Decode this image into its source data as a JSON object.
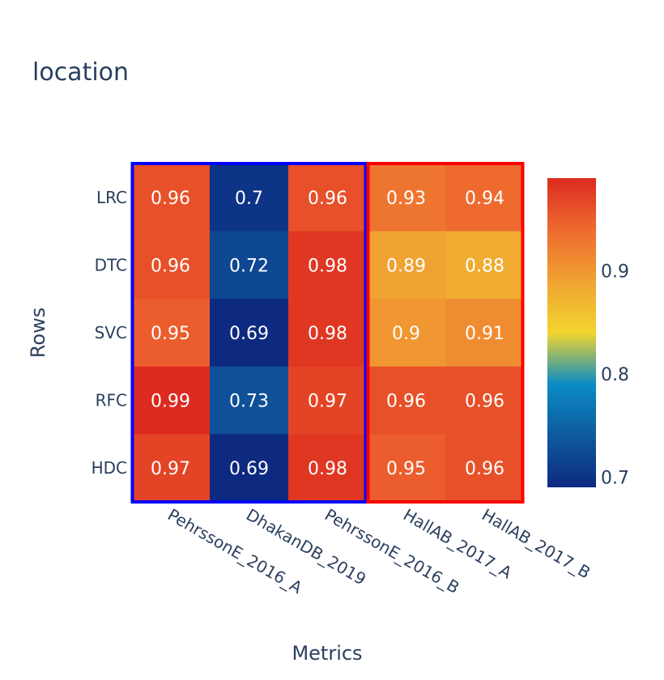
{
  "chart_data": {
    "type": "heatmap",
    "title": "location",
    "xlabel": "Metrics",
    "ylabel": "Rows",
    "x": [
      "PehrssonE_2016_A",
      "DhakanDB_2019",
      "PehrssonE_2016_B",
      "HallAB_2017_A",
      "HallAB_2017_B"
    ],
    "y": [
      "LRC",
      "DTC",
      "SVC",
      "RFC",
      "HDC"
    ],
    "values": [
      [
        0.96,
        0.7,
        0.96,
        0.93,
        0.94
      ],
      [
        0.96,
        0.72,
        0.98,
        0.89,
        0.88
      ],
      [
        0.95,
        0.69,
        0.98,
        0.9,
        0.91
      ],
      [
        0.99,
        0.73,
        0.97,
        0.96,
        0.96
      ],
      [
        0.97,
        0.69,
        0.98,
        0.95,
        0.96
      ]
    ],
    "labels": [
      [
        "0.96",
        "0.7",
        "0.96",
        "0.93",
        "0.94"
      ],
      [
        "0.96",
        "0.72",
        "0.98",
        "0.89",
        "0.88"
      ],
      [
        "0.95",
        "0.69",
        "0.98",
        "0.9",
        "0.91"
      ],
      [
        "0.99",
        "0.73",
        "0.97",
        "0.96",
        "0.96"
      ],
      [
        "0.97",
        "0.69",
        "0.98",
        "0.95",
        "0.96"
      ]
    ],
    "zmin": 0.69,
    "zmax": 0.99,
    "colorscale": [
      "#0d2a80",
      "#0f5a9e",
      "#0a8cc4",
      "#f2d52f",
      "#f0a232",
      "#ee6a2f",
      "#dd2a20"
    ],
    "colorbar": {
      "ticks": [
        0.7,
        0.8,
        0.9
      ],
      "tick_labels": [
        "0.7",
        "0.8",
        "0.9"
      ]
    },
    "groups": [
      {
        "columns": [
          0,
          2
        ],
        "color": "#0000ff"
      },
      {
        "columns": [
          3,
          4
        ],
        "color": "#ff0000"
      }
    ]
  }
}
